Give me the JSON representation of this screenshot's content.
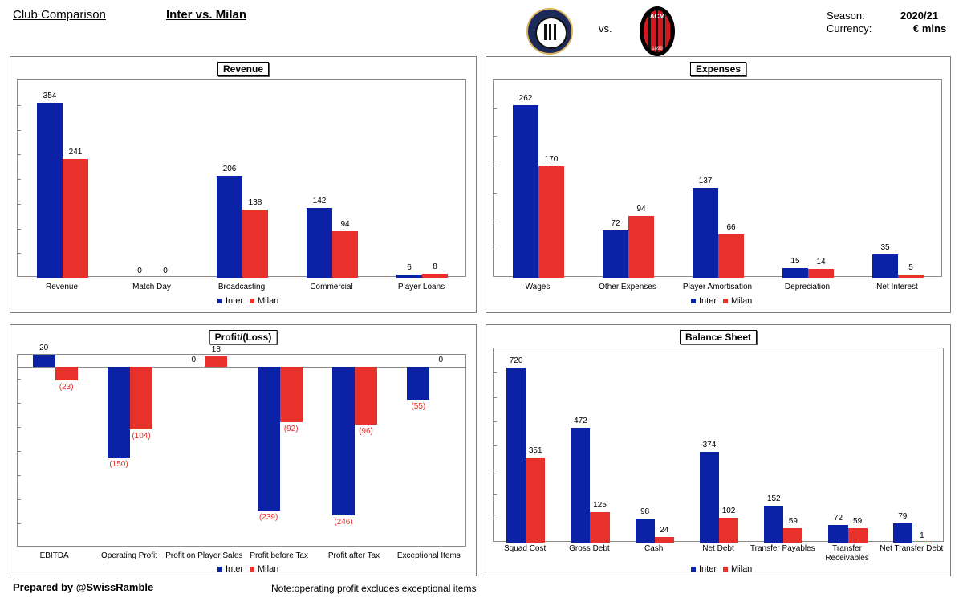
{
  "header": {
    "left": "Club Comparison",
    "title": "Inter vs. Milan",
    "vs": "vs.",
    "season_label": "Season:",
    "season_value": "2020/21",
    "currency_label": "Currency:",
    "currency_value": "€ mlns",
    "milan_logo_text": "ACM",
    "milan_logo_year": "1899"
  },
  "footer": {
    "prepared": "Prepared by @SwissRamble",
    "note": "Note:operating profit excludes exceptional items"
  },
  "colors": {
    "inter": "#0b22a6",
    "milan": "#e8312a"
  },
  "legend": {
    "inter": "Inter",
    "milan": "Milan"
  },
  "chart_data": [
    {
      "type": "bar",
      "title": "Revenue",
      "categories": [
        "Revenue",
        "Match Day",
        "Broadcasting",
        "Commercial",
        "Player Loans"
      ],
      "series": [
        {
          "name": "Inter",
          "values": [
            354,
            0,
            206,
            142,
            6
          ],
          "labels": [
            "354",
            "0",
            "206",
            "142",
            "6"
          ]
        },
        {
          "name": "Milan",
          "values": [
            241,
            0,
            138,
            94,
            8
          ],
          "labels": [
            "241",
            "0",
            "138",
            "94",
            "8"
          ]
        }
      ],
      "ylim": [
        0,
        400
      ],
      "legend": "bottom"
    },
    {
      "type": "bar",
      "title": "Expenses",
      "categories": [
        "Wages",
        "Other Expenses",
        "Player Amortisation",
        "Depreciation",
        "Net Interest"
      ],
      "series": [
        {
          "name": "Inter",
          "values": [
            262,
            72,
            137,
            15,
            35
          ],
          "labels": [
            "262",
            "72",
            "137",
            "15",
            "35"
          ]
        },
        {
          "name": "Milan",
          "values": [
            170,
            94,
            66,
            14,
            5
          ],
          "labels": [
            "170",
            "94",
            "66",
            "14",
            "5"
          ]
        }
      ],
      "ylim": [
        0,
        300
      ],
      "legend": "bottom"
    },
    {
      "type": "bar",
      "title": "Profit/(Loss)",
      "categories": [
        "EBITDA",
        "Operating Profit",
        "Profit on Player Sales",
        "Profit before Tax",
        "Profit after Tax",
        "Exceptional Items"
      ],
      "series": [
        {
          "name": "Inter",
          "values": [
            20,
            -150,
            0,
            -239,
            -246,
            -55
          ],
          "labels": [
            "20",
            "(150)",
            "0",
            "(239)",
            "(246)",
            "(55)"
          ]
        },
        {
          "name": "Milan",
          "values": [
            -23,
            -104,
            18,
            -92,
            -96,
            0
          ],
          "labels": [
            "(23)",
            "(104)",
            "18",
            "(92)",
            "(96)",
            "0"
          ]
        }
      ],
      "ylim": [
        -300,
        20
      ],
      "legend": "bottom"
    },
    {
      "type": "bar",
      "title": "Balance Sheet",
      "categories": [
        "Squad Cost",
        "Gross Debt",
        "Cash",
        "Net Debt",
        "Transfer Payables",
        "Transfer Receivables",
        "Net Transfer Debt"
      ],
      "series": [
        {
          "name": "Inter",
          "values": [
            720,
            472,
            98,
            374,
            152,
            72,
            79
          ],
          "labels": [
            "720",
            "472",
            "98",
            "374",
            "152",
            "72",
            "79"
          ]
        },
        {
          "name": "Milan",
          "values": [
            351,
            125,
            24,
            102,
            59,
            59,
            1
          ],
          "labels": [
            "351",
            "125",
            "24",
            "102",
            "59",
            "59",
            "1"
          ]
        }
      ],
      "ylim": [
        0,
        800
      ],
      "legend": "bottom"
    }
  ]
}
